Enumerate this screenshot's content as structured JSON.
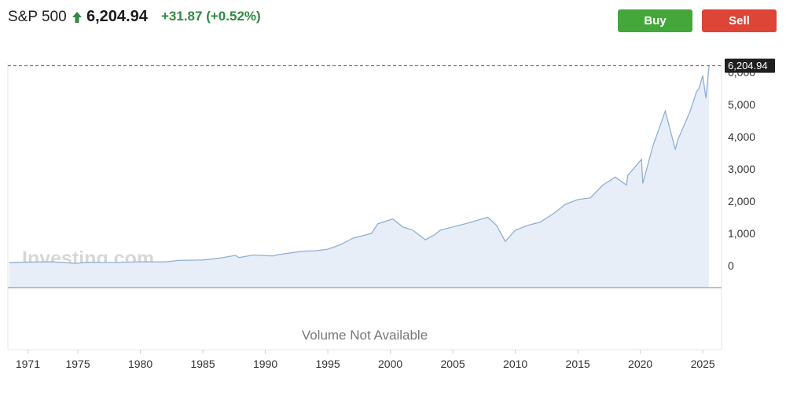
{
  "header": {
    "ticker": "S&P 500",
    "last_price": "6,204.94",
    "change": "+31.87",
    "change_pct": "(+0.52%)",
    "direction": "up",
    "up_color": "#2f8a3e"
  },
  "actions": {
    "buy_label": "Buy",
    "sell_label": "Sell",
    "buy_color": "#44a73a",
    "sell_color": "#dd4536"
  },
  "watermark": "Investing.com",
  "volume_message": "Volume Not Available",
  "chart_data": {
    "type": "area",
    "series": [
      {
        "x": [
          1969.5,
          1972,
          1973,
          1974.8,
          1976,
          1978,
          1980,
          1982,
          1983,
          1985,
          1986.5,
          1987.6,
          1987.9,
          1989,
          1990.6,
          1991,
          1993,
          1994,
          1995,
          1996,
          1997,
          1998.5,
          1999,
          2000.2,
          2001,
          2001.8,
          2002.8,
          2003.5,
          2004,
          2005,
          2006,
          2007.8,
          2008.5,
          2009.2,
          2010,
          2011,
          2012,
          2013,
          2014,
          2015,
          2016,
          2017,
          2018,
          2018.9,
          2019,
          2020.1,
          2020.2,
          2021,
          2022,
          2022.8,
          2023,
          2024,
          2024.5,
          2024.7,
          2025,
          2025.25,
          2025.5
        ],
        "y": [
          92,
          115,
          118,
          70,
          105,
          95,
          120,
          115,
          160,
          175,
          240,
          320,
          250,
          330,
          300,
          340,
          450,
          460,
          510,
          650,
          850,
          1000,
          1300,
          1450,
          1200,
          1100,
          800,
          950,
          1100,
          1200,
          1300,
          1500,
          1250,
          750,
          1100,
          1250,
          1350,
          1600,
          1900,
          2050,
          2100,
          2500,
          2750,
          2500,
          2800,
          3300,
          2550,
          3700,
          4800,
          3600,
          3900,
          4800,
          5400,
          5500,
          5900,
          5200,
          6204.94
        ]
      }
    ],
    "ylim": [
      -700,
      6400
    ],
    "xlim": [
      1969.4,
      2026.5
    ],
    "y_ticks": [
      0,
      1000,
      2000,
      3000,
      4000,
      5000,
      6000
    ],
    "y_tick_labels": [
      "0",
      "1,000",
      "2,000",
      "3,000",
      "4,000",
      "5,000",
      "6,000"
    ],
    "x_ticks": [
      1971,
      1975,
      1980,
      1985,
      1990,
      1995,
      2000,
      2005,
      2010,
      2015,
      2020,
      2025
    ],
    "x_tick_labels": [
      "1971",
      "1975",
      "1980",
      "1985",
      "1990",
      "1995",
      "2000",
      "2005",
      "2010",
      "2015",
      "2020",
      "2025"
    ],
    "last_value": 6204.94,
    "last_value_label": "6,204.94",
    "line_color": "#8fb0d3",
    "fill_color": "#e8eef7",
    "reference_line_color": "#b04a3d",
    "grid": false
  }
}
